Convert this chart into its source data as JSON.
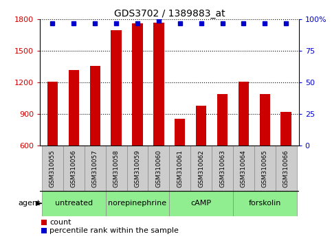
{
  "title": "GDS3702 / 1389883_at",
  "samples": [
    "GSM310055",
    "GSM310056",
    "GSM310057",
    "GSM310058",
    "GSM310059",
    "GSM310060",
    "GSM310061",
    "GSM310062",
    "GSM310063",
    "GSM310064",
    "GSM310065",
    "GSM310066"
  ],
  "counts": [
    1210,
    1320,
    1360,
    1700,
    1760,
    1770,
    860,
    980,
    1090,
    1210,
    1090,
    920
  ],
  "percentiles": [
    97,
    97,
    97,
    97,
    97,
    99,
    97,
    97,
    97,
    97,
    97,
    97
  ],
  "ylim_left": [
    600,
    1800
  ],
  "ylim_right": [
    0,
    100
  ],
  "yticks_left": [
    600,
    900,
    1200,
    1500,
    1800
  ],
  "yticks_right": [
    0,
    25,
    50,
    75,
    100
  ],
  "ytick_right_labels": [
    "0",
    "25",
    "50",
    "75",
    "100%"
  ],
  "bar_color": "#cc0000",
  "dot_color": "#0000cc",
  "bar_width": 0.5,
  "agents": [
    {
      "label": "untreated",
      "start": 0,
      "end": 3
    },
    {
      "label": "norepinephrine",
      "start": 3,
      "end": 6
    },
    {
      "label": "cAMP",
      "start": 6,
      "end": 9
    },
    {
      "label": "forskolin",
      "start": 9,
      "end": 12
    }
  ],
  "agent_color": "#90ee90",
  "sample_bg_color": "#cccccc",
  "legend_count_color": "#cc0000",
  "legend_pct_color": "#0000cc",
  "border_color": "#888888"
}
